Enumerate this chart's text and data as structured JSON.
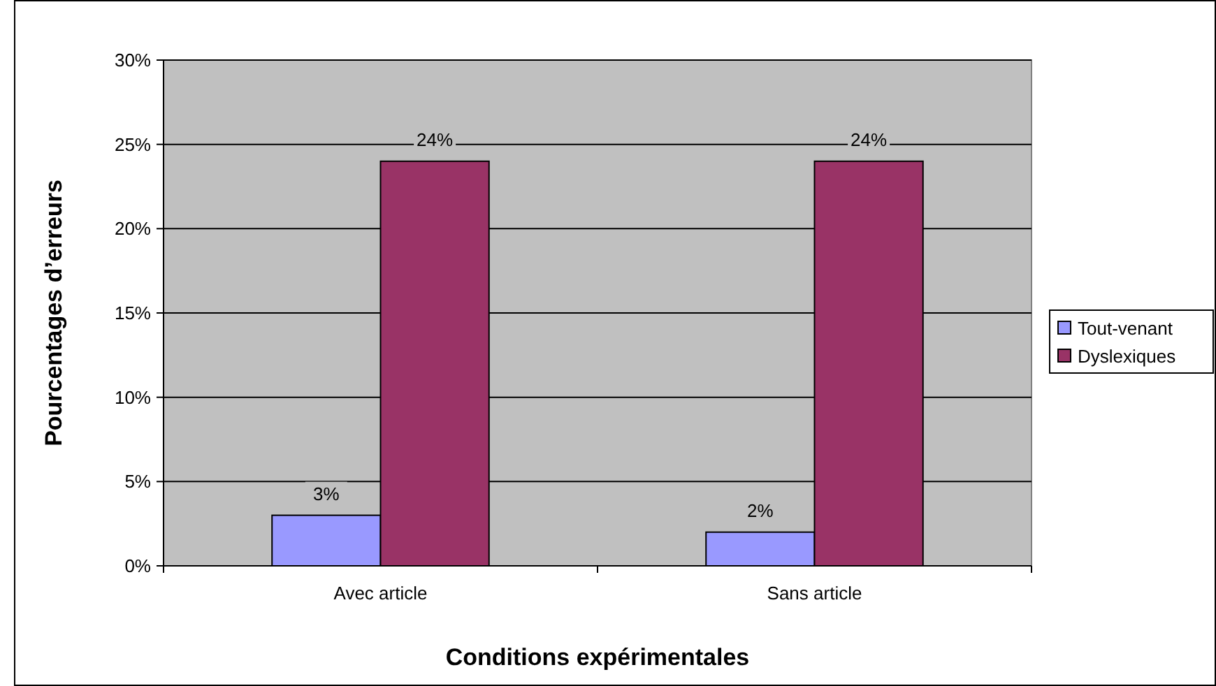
{
  "chart_data": {
    "type": "bar",
    "ylabel": "Pourcentages d’erreurs",
    "xlabel": "Conditions expérimentales",
    "categories": [
      "Avec article",
      "Sans article"
    ],
    "series": [
      {
        "name": "Tout-venant",
        "color": "#9999ff",
        "values": [
          3,
          2
        ],
        "value_labels": [
          "3%",
          "2%"
        ]
      },
      {
        "name": "Dyslexiques",
        "color": "#993366",
        "values": [
          24,
          24
        ],
        "value_labels": [
          "24%",
          "24%"
        ]
      }
    ],
    "ylim": [
      0,
      30
    ],
    "yticks": [
      {
        "value": 0,
        "label": "0%"
      },
      {
        "value": 5,
        "label": "5%"
      },
      {
        "value": 10,
        "label": "10%"
      },
      {
        "value": 15,
        "label": "15%"
      },
      {
        "value": 20,
        "label": "20%"
      },
      {
        "value": 25,
        "label": "25%"
      },
      {
        "value": 30,
        "label": "30%"
      }
    ],
    "grid": "y",
    "legend": "right"
  }
}
